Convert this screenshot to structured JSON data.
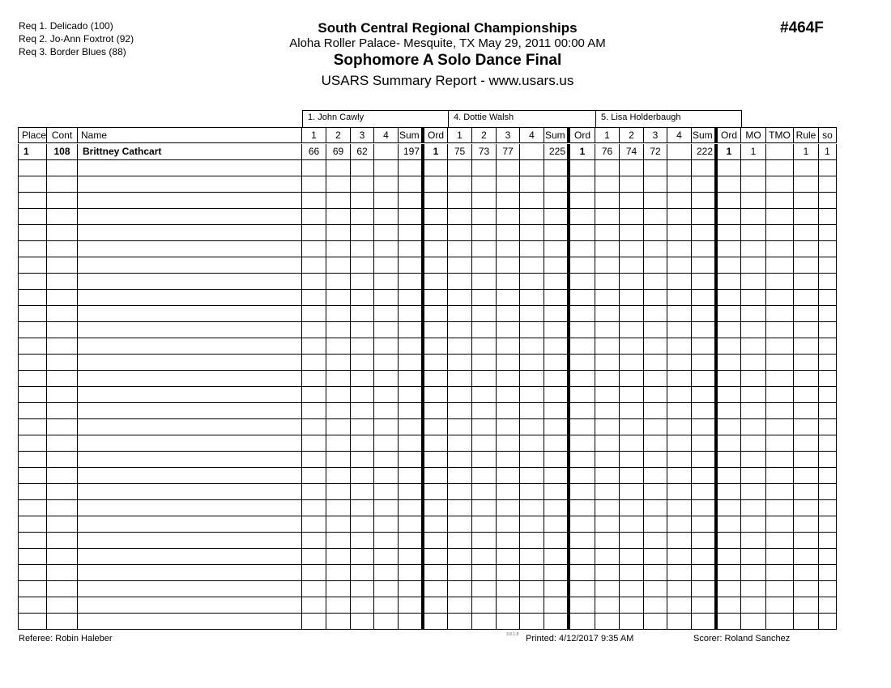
{
  "requested_music": [
    "Req  1.  Delicado (100)",
    "Req  2.  Jo-Ann Foxtrot (92)",
    "Req  3.  Border Blues (88)"
  ],
  "header": {
    "event_title": "South Central Regional Championships",
    "venue_date": "Aloha Roller Palace- Mesquite, TX  May 29, 2011  00:00 AM",
    "event_name": "Sophomore A Solo Dance Final",
    "report_title": "USARS Summary Report - www.usars.us",
    "event_number": "#464F"
  },
  "judges": [
    "1.  John Cawly",
    "4.  Dottie Walsh",
    "5.  Lisa Holderbaugh"
  ],
  "columns": {
    "place": "Place",
    "cont": "Cont",
    "name": "Name",
    "judge_cols": [
      "1",
      "2",
      "3",
      "4",
      "Sum",
      "Ord"
    ],
    "tail": [
      "MO",
      "TMO",
      "Rule",
      "so"
    ]
  },
  "rows": [
    {
      "place": "1",
      "cont": "108",
      "name": "Brittney Cathcart",
      "judges": [
        [
          "66",
          "69",
          "62",
          "",
          "197",
          "1"
        ],
        [
          "75",
          "73",
          "77",
          "",
          "225",
          "1"
        ],
        [
          "76",
          "74",
          "72",
          "",
          "222",
          "1"
        ]
      ],
      "tail": [
        "1",
        "",
        "1",
        "1"
      ]
    }
  ],
  "footer": {
    "referee": "Referee:  Robin Haleber",
    "version": "3.8.1.8",
    "printed": "Printed:  4/12/2017  9:35 AM",
    "scorer": "Scorer:    Roland Sanchez"
  }
}
